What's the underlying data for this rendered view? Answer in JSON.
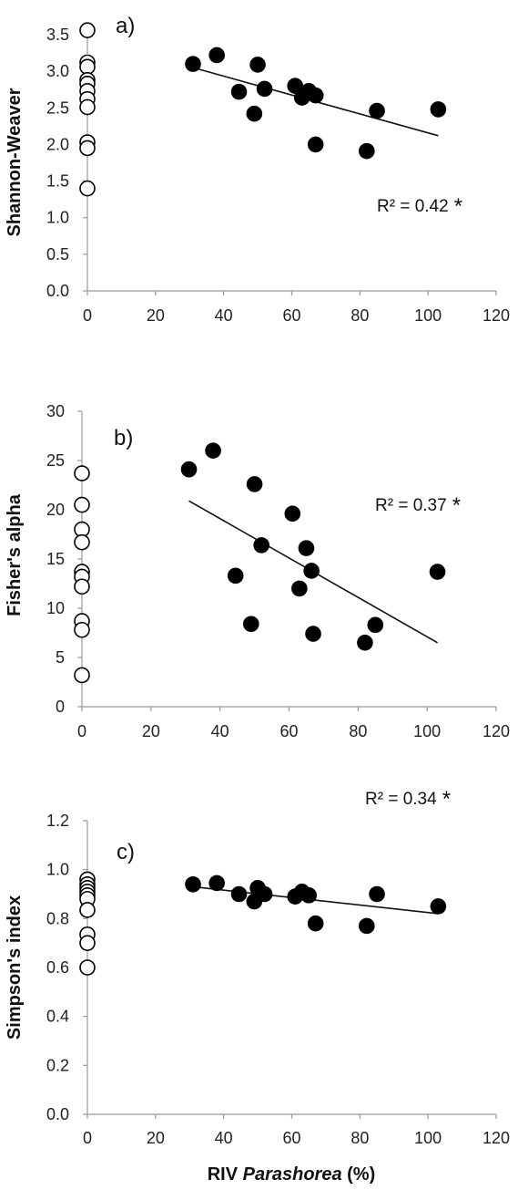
{
  "chart_data": [
    {
      "type": "scatter",
      "panel_label": "a)",
      "ylabel": "Shannon-Weaver",
      "xlim": [
        0,
        120
      ],
      "ylim": [
        0,
        3.5
      ],
      "xticks": [
        "0",
        "20",
        "40",
        "60",
        "80",
        "100",
        "120"
      ],
      "yticks": [
        "0.0",
        "0.5",
        "1.0",
        "1.5",
        "2.0",
        "2.5",
        "3.0",
        "3.5"
      ],
      "r2_label": "R² = 0.42",
      "significance": "*",
      "trendline": {
        "x": [
          31,
          103
        ],
        "y": [
          3.05,
          2.12
        ]
      },
      "series": [
        {
          "filled": true,
          "points": [
            [
              31,
              3.1
            ],
            [
              38,
              3.22
            ],
            [
              44.5,
              2.72
            ],
            [
              49,
              2.42
            ],
            [
              50,
              3.09
            ],
            [
              52,
              2.76
            ],
            [
              61,
              2.8
            ],
            [
              63,
              2.64
            ],
            [
              65,
              2.73
            ],
            [
              67,
              2.67
            ],
            [
              67,
              2.0
            ],
            [
              82,
              1.91
            ],
            [
              85,
              2.46
            ],
            [
              103,
              2.48
            ]
          ]
        },
        {
          "filled": false,
          "points": [
            [
              0,
              3.56
            ],
            [
              0,
              3.12
            ],
            [
              0,
              3.06
            ],
            [
              0,
              2.88
            ],
            [
              0,
              2.83
            ],
            [
              0,
              2.73
            ],
            [
              0,
              2.62
            ],
            [
              0,
              2.51
            ],
            [
              0,
              2.03
            ],
            [
              0,
              1.95
            ],
            [
              0,
              1.4
            ]
          ]
        }
      ]
    },
    {
      "type": "scatter",
      "panel_label": "b)",
      "ylabel": "Fisher's alpha",
      "xlim": [
        0,
        120
      ],
      "ylim": [
        0,
        30
      ],
      "xticks": [
        "0",
        "20",
        "40",
        "60",
        "80",
        "100",
        "120"
      ],
      "yticks": [
        "0",
        "5",
        "10",
        "15",
        "20",
        "25",
        "30"
      ],
      "r2_label": "R² = 0.37",
      "significance": "*",
      "trendline": {
        "x": [
          31,
          103
        ],
        "y": [
          20.9,
          6.5
        ]
      },
      "series": [
        {
          "filled": true,
          "points": [
            [
              31,
              24.1
            ],
            [
              38,
              26.0
            ],
            [
              44.5,
              13.3
            ],
            [
              49,
              8.4
            ],
            [
              50,
              22.6
            ],
            [
              52,
              16.4
            ],
            [
              61,
              19.6
            ],
            [
              63,
              12.0
            ],
            [
              65,
              16.1
            ],
            [
              66.5,
              13.8
            ],
            [
              67,
              7.4
            ],
            [
              82,
              6.5
            ],
            [
              85,
              8.3
            ],
            [
              103,
              13.7
            ]
          ]
        },
        {
          "filled": false,
          "points": [
            [
              0,
              23.7
            ],
            [
              0,
              20.5
            ],
            [
              0,
              18.0
            ],
            [
              0,
              16.7
            ],
            [
              0,
              13.7
            ],
            [
              0,
              13.2
            ],
            [
              0,
              12.2
            ],
            [
              0,
              8.7
            ],
            [
              0,
              7.8
            ],
            [
              0,
              3.2
            ]
          ]
        }
      ]
    },
    {
      "type": "scatter",
      "panel_label": "c)",
      "ylabel": "Simpson's index",
      "xlabel_prefix": "RIV ",
      "xlabel_italic": "Parashorea",
      "xlabel_suffix": " (%)",
      "xlim": [
        0,
        120
      ],
      "ylim": [
        0,
        1.2
      ],
      "xticks": [
        "0",
        "20",
        "40",
        "60",
        "80",
        "100",
        "120"
      ],
      "yticks": [
        "0.0",
        "0.2",
        "0.4",
        "0.6",
        "0.8",
        "1.0",
        "1.2"
      ],
      "r2_label": "R² = 0.34",
      "significance": "*",
      "trendline": {
        "x": [
          31,
          103
        ],
        "y": [
          0.93,
          0.82
        ]
      },
      "series": [
        {
          "filled": true,
          "points": [
            [
              31,
              0.94
            ],
            [
              38,
              0.945
            ],
            [
              44.5,
              0.9
            ],
            [
              49,
              0.87
            ],
            [
              50,
              0.925
            ],
            [
              52,
              0.9
            ],
            [
              61,
              0.89
            ],
            [
              63,
              0.91
            ],
            [
              65,
              0.895
            ],
            [
              67,
              0.78
            ],
            [
              82,
              0.77
            ],
            [
              85,
              0.9
            ],
            [
              103,
              0.85
            ]
          ]
        },
        {
          "filled": false,
          "points": [
            [
              0,
              0.96
            ],
            [
              0,
              0.94
            ],
            [
              0,
              0.925
            ],
            [
              0,
              0.91
            ],
            [
              0,
              0.895
            ],
            [
              0,
              0.88
            ],
            [
              0,
              0.835
            ],
            [
              0,
              0.735
            ],
            [
              0,
              0.7
            ],
            [
              0,
              0.6
            ]
          ]
        }
      ]
    }
  ]
}
